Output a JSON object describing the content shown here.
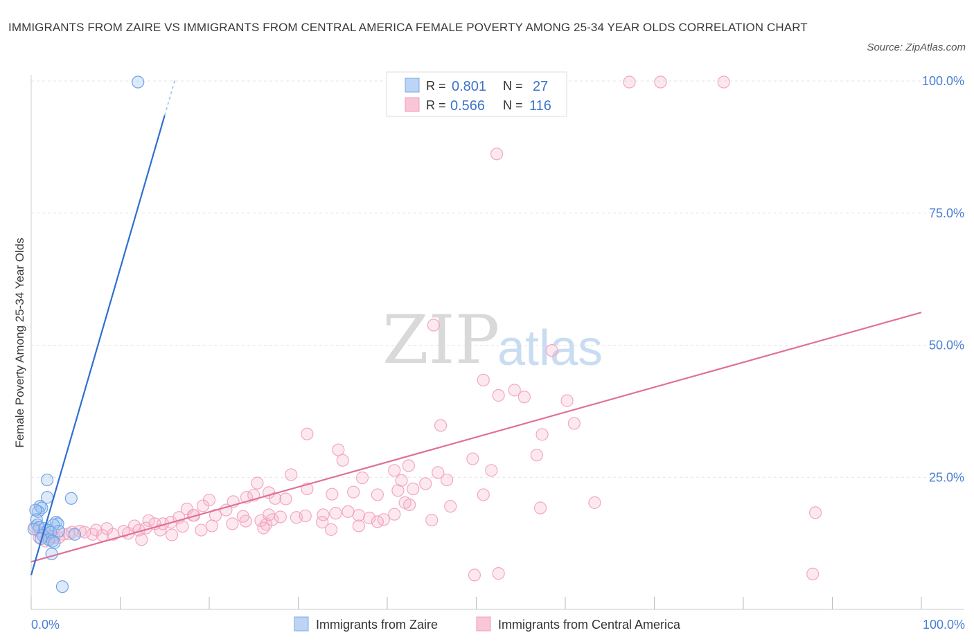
{
  "chart_data": {
    "type": "scatter",
    "title": "IMMIGRANTS FROM ZAIRE VS IMMIGRANTS FROM CENTRAL AMERICA FEMALE POVERTY AMONG 25-34 YEAR OLDS CORRELATION CHART",
    "source": "Source: ZipAtlas.com",
    "xlabel": "",
    "ylabel": "Female Poverty Among 25-34 Year Olds",
    "xlim": [
      0,
      100
    ],
    "ylim": [
      0,
      100
    ],
    "x_tick_labels": [
      "0.0%",
      "100.0%"
    ],
    "y_tick_labels": [
      "25.0%",
      "50.0%",
      "75.0%",
      "100.0%"
    ],
    "y_ticks": [
      25,
      50,
      75,
      100
    ],
    "grid": true,
    "legend_position": "top-center",
    "stats": [
      {
        "r_label": "R =",
        "r": "0.801",
        "n_label": "N =",
        "n": "27"
      },
      {
        "r_label": "R =",
        "r": "0.566",
        "n_label": "N =",
        "n": "116"
      }
    ],
    "series": [
      {
        "name": "Immigrants from Zaire",
        "color": "#6fa3e8",
        "line_color": "#2f6fcf",
        "trend": {
          "x0": 0,
          "y0": 6.5,
          "x1": 15.0,
          "y1": 93.5,
          "dash_to_x": 16.2,
          "dash_to_y": 100.5
        },
        "points": [
          [
            12.0,
            99.8
          ],
          [
            1.8,
            24.5
          ],
          [
            1.8,
            21.2
          ],
          [
            4.5,
            21.0
          ],
          [
            1.0,
            19.5
          ],
          [
            1.2,
            19.2
          ],
          [
            0.8,
            18.5
          ],
          [
            0.5,
            18.8
          ],
          [
            0.6,
            17.0
          ],
          [
            2.8,
            16.5
          ],
          [
            3.0,
            16.2
          ],
          [
            2.5,
            16.0
          ],
          [
            0.7,
            16.0
          ],
          [
            0.9,
            15.5
          ],
          [
            1.5,
            15.3
          ],
          [
            1.9,
            15.0
          ],
          [
            0.3,
            15.2
          ],
          [
            2.2,
            14.6
          ],
          [
            3.1,
            14.8
          ],
          [
            4.9,
            14.2
          ],
          [
            1.3,
            14.0
          ],
          [
            2.0,
            13.2
          ],
          [
            2.4,
            12.9
          ],
          [
            1.1,
            13.4
          ],
          [
            2.6,
            12.6
          ],
          [
            2.3,
            10.5
          ],
          [
            3.5,
            4.3
          ]
        ]
      },
      {
        "name": "Immigrants from Central America",
        "color": "#f3a6c0",
        "line_color": "#e0709a",
        "trend": {
          "x0": 0,
          "y0": 9.0,
          "x1": 100,
          "y1": 56.2
        },
        "points": [
          [
            67.2,
            99.8
          ],
          [
            70.7,
            99.8
          ],
          [
            77.8,
            99.8
          ],
          [
            52.3,
            86.2
          ],
          [
            45.2,
            53.8
          ],
          [
            58.5,
            49.0
          ],
          [
            50.8,
            43.4
          ],
          [
            54.3,
            41.5
          ],
          [
            52.5,
            40.5
          ],
          [
            55.4,
            40.2
          ],
          [
            60.2,
            39.5
          ],
          [
            46.0,
            34.8
          ],
          [
            61.0,
            35.2
          ],
          [
            57.4,
            33.1
          ],
          [
            31.0,
            33.2
          ],
          [
            34.5,
            30.2
          ],
          [
            35.0,
            28.2
          ],
          [
            49.6,
            28.5
          ],
          [
            56.8,
            29.2
          ],
          [
            42.4,
            27.2
          ],
          [
            45.7,
            25.9
          ],
          [
            51.7,
            26.3
          ],
          [
            29.2,
            25.5
          ],
          [
            37.2,
            24.9
          ],
          [
            40.8,
            26.3
          ],
          [
            41.6,
            24.4
          ],
          [
            46.7,
            24.5
          ],
          [
            42.9,
            22.8
          ],
          [
            44.3,
            23.8
          ],
          [
            25.4,
            23.9
          ],
          [
            26.7,
            22.1
          ],
          [
            31.0,
            22.8
          ],
          [
            33.8,
            21.8
          ],
          [
            36.2,
            22.2
          ],
          [
            38.9,
            21.7
          ],
          [
            41.2,
            22.5
          ],
          [
            50.8,
            21.7
          ],
          [
            20.0,
            20.7
          ],
          [
            22.7,
            20.4
          ],
          [
            24.2,
            21.2
          ],
          [
            25.0,
            21.6
          ],
          [
            27.4,
            21.0
          ],
          [
            28.6,
            20.9
          ],
          [
            42.0,
            20.2
          ],
          [
            47.1,
            19.5
          ],
          [
            57.2,
            19.2
          ],
          [
            42.5,
            19.8
          ],
          [
            63.3,
            20.2
          ],
          [
            88.1,
            18.3
          ],
          [
            12.4,
            13.2
          ],
          [
            17.5,
            19.0
          ],
          [
            18.2,
            17.8
          ],
          [
            20.7,
            17.8
          ],
          [
            21.9,
            18.8
          ],
          [
            23.8,
            17.6
          ],
          [
            25.8,
            16.8
          ],
          [
            27.1,
            17.0
          ],
          [
            28.0,
            17.5
          ],
          [
            30.8,
            17.7
          ],
          [
            32.8,
            17.9
          ],
          [
            34.2,
            18.2
          ],
          [
            35.6,
            18.5
          ],
          [
            36.8,
            17.8
          ],
          [
            38.0,
            17.3
          ],
          [
            39.6,
            17.0
          ],
          [
            40.8,
            18.0
          ],
          [
            45.0,
            16.9
          ],
          [
            26.4,
            16.1
          ],
          [
            14.8,
            16.2
          ],
          [
            15.7,
            16.5
          ],
          [
            16.6,
            17.4
          ],
          [
            13.2,
            16.8
          ],
          [
            13.9,
            16.2
          ],
          [
            11.6,
            15.8
          ],
          [
            12.1,
            15.0
          ],
          [
            10.4,
            14.8
          ],
          [
            9.2,
            14.2
          ],
          [
            8.5,
            15.3
          ],
          [
            7.3,
            15.0
          ],
          [
            6.9,
            14.2
          ],
          [
            5.5,
            14.8
          ],
          [
            4.6,
            14.6
          ],
          [
            3.6,
            14.2
          ],
          [
            2.6,
            13.6
          ],
          [
            1.8,
            13.9
          ],
          [
            1.3,
            14.5
          ],
          [
            0.8,
            14.8
          ],
          [
            0.4,
            15.6
          ],
          [
            0.9,
            13.6
          ],
          [
            1.6,
            12.9
          ],
          [
            2.3,
            13.7
          ],
          [
            3.1,
            13.6
          ],
          [
            4.2,
            14.3
          ],
          [
            6.0,
            14.6
          ],
          [
            8.0,
            14.0
          ],
          [
            10.9,
            14.4
          ],
          [
            12.9,
            15.4
          ],
          [
            14.5,
            15.0
          ],
          [
            15.8,
            14.1
          ],
          [
            17.0,
            15.7
          ],
          [
            19.1,
            15.0
          ],
          [
            20.3,
            15.8
          ],
          [
            22.6,
            16.2
          ],
          [
            24.1,
            16.7
          ],
          [
            26.7,
            17.9
          ],
          [
            29.8,
            17.4
          ],
          [
            18.3,
            17.8
          ],
          [
            26.1,
            15.4
          ],
          [
            33.7,
            15.1
          ],
          [
            19.3,
            19.6
          ],
          [
            32.7,
            16.5
          ],
          [
            36.8,
            15.8
          ],
          [
            38.9,
            16.6
          ],
          [
            49.8,
            6.5
          ],
          [
            52.5,
            6.8
          ],
          [
            87.8,
            6.7
          ]
        ]
      }
    ]
  }
}
